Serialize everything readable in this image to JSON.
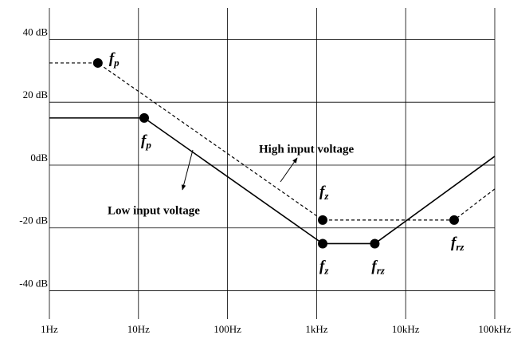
{
  "chart_data": {
    "type": "line",
    "log_x": true,
    "grid": true,
    "xlim": [
      1,
      100000
    ],
    "xticks": [
      {
        "value": 1,
        "label": "1Hz"
      },
      {
        "value": 10,
        "label": "10Hz"
      },
      {
        "value": 100,
        "label": "100Hz"
      },
      {
        "value": 1000,
        "label": "1kHz"
      },
      {
        "value": 10000,
        "label": "10kHz"
      },
      {
        "value": 100000,
        "label": "100kHz"
      }
    ],
    "ylim": [
      -49,
      50
    ],
    "yticks": [
      {
        "value": 40,
        "label": "40 dB"
      },
      {
        "value": 20,
        "label": "20 dB"
      },
      {
        "value": 0,
        "label": "0dB"
      },
      {
        "value": -20,
        "label": "-20 dB"
      },
      {
        "value": -40,
        "label": "-40 dB"
      }
    ],
    "series": [
      {
        "name": "Low input voltage",
        "color": "#000000",
        "dash": false,
        "x": [
          1,
          11.6,
          1170,
          4500,
          100000
        ],
        "values": [
          15,
          15,
          -25,
          -25,
          2.8
        ],
        "point_labels": [
          null,
          {
            "main": "f",
            "sub": "p"
          },
          {
            "main": "f",
            "sub": "z"
          },
          {
            "main": "f",
            "sub": "rz"
          },
          null
        ]
      },
      {
        "name": "High input voltage",
        "color": "#000000",
        "dash": true,
        "x": [
          1,
          3.5,
          1170,
          35000,
          100000
        ],
        "values": [
          32.5,
          32.5,
          -17.5,
          -17.5,
          -7.6
        ],
        "point_labels": [
          null,
          {
            "main": "f",
            "sub": "p"
          },
          {
            "main": "f",
            "sub": "z"
          },
          {
            "main": "f",
            "sub": "rz"
          },
          null
        ]
      }
    ]
  }
}
